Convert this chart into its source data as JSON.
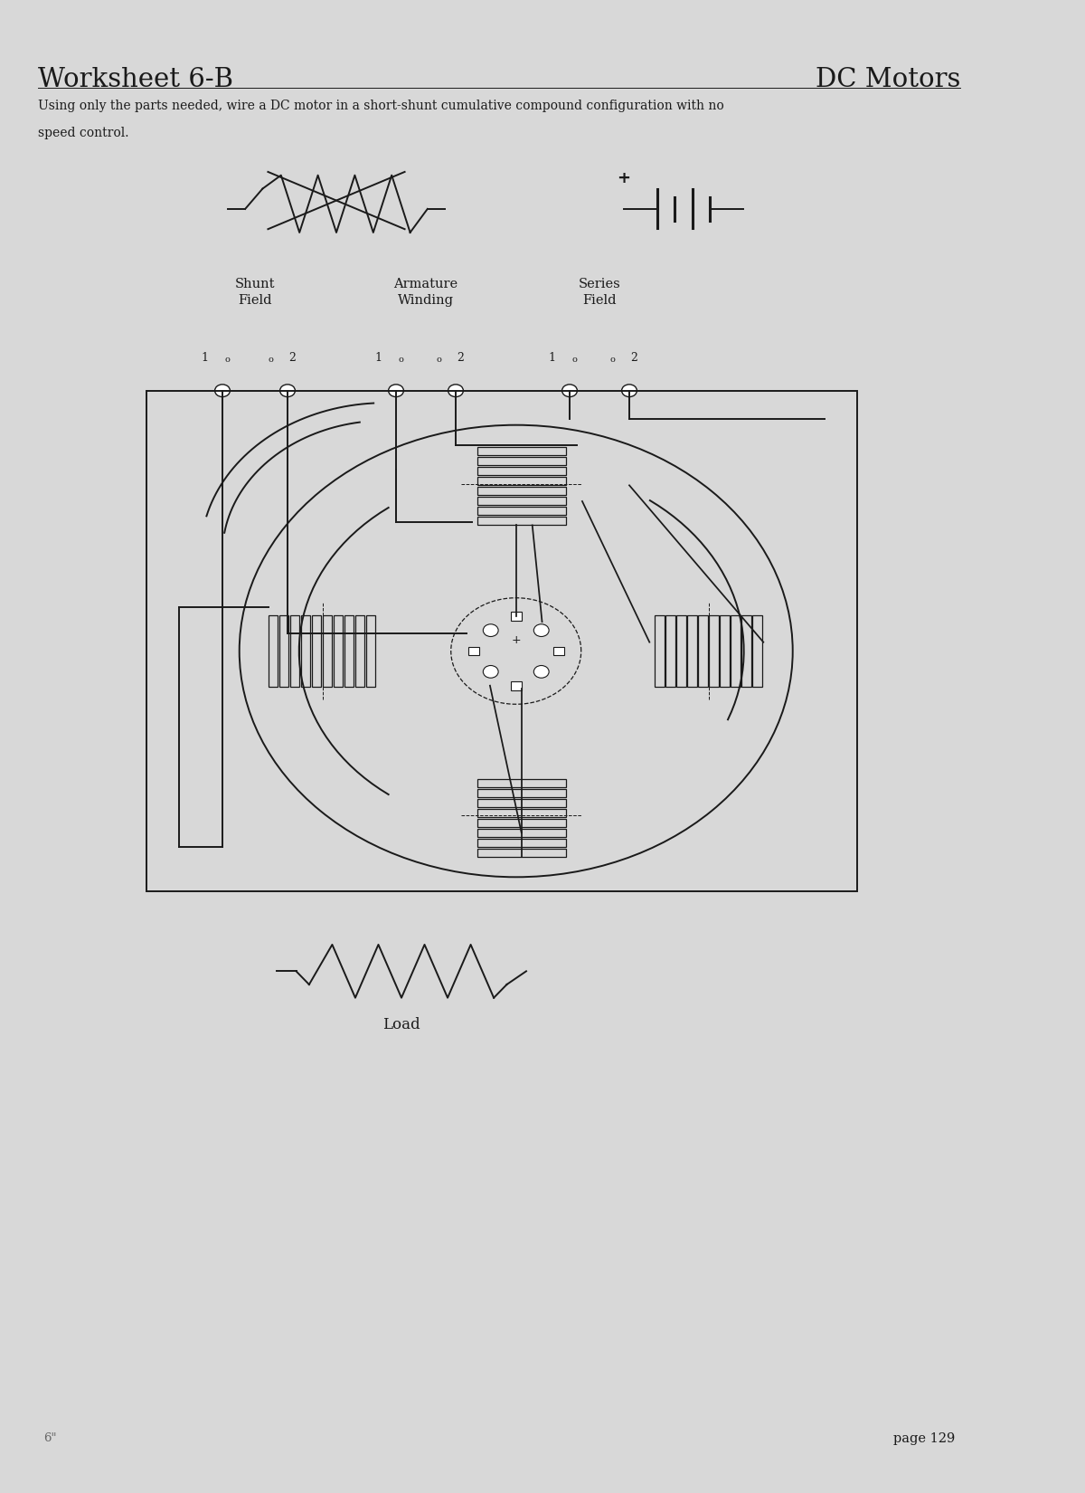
{
  "title_left": "Worksheet 6-B",
  "title_right": "DC Motors",
  "instruction_line1": "Using only the parts needed, wire a DC motor in a short-shunt cumulative compound configuration with no",
  "instruction_line2": "speed control.",
  "label_shunt": "Shunt\nField",
  "label_armature": "Armature\nWinding",
  "label_series": "Series\nField",
  "label_load": "Load",
  "footer_left": "6\"",
  "footer_right": "page 129",
  "bg_color": "#d8d8d8",
  "paper_color": "#f7f7f5",
  "ink_color": "#1a1a1a"
}
